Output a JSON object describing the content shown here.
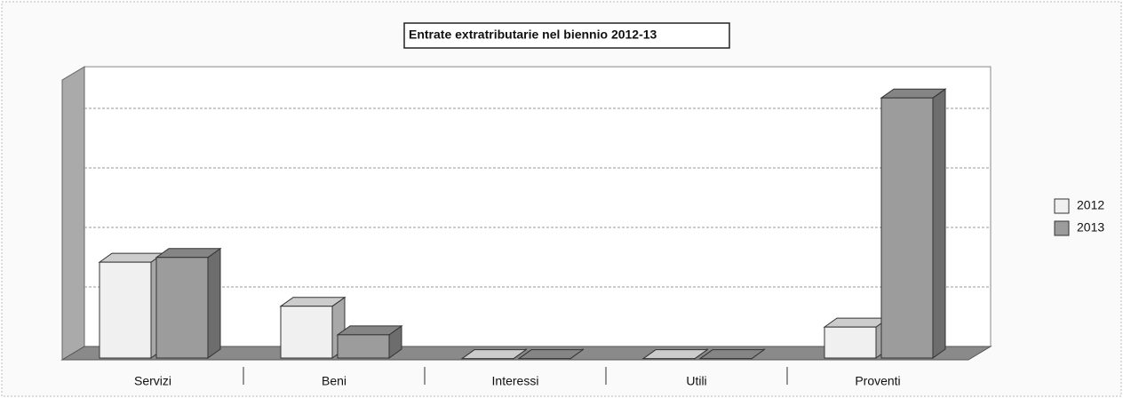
{
  "chart_data": {
    "type": "bar3d",
    "title": "Entrate extratributarie nel biennio 2012-13",
    "categories": [
      "Servizi",
      "Beni",
      "Interessi",
      "Utili",
      "Proventi"
    ],
    "series": [
      {
        "name": "2012",
        "color": "#f0f0f0",
        "values": [
          1.64,
          0.9,
          0.02,
          0.02,
          0.55
        ]
      },
      {
        "name": "2013",
        "color": "#9c9c9c",
        "values": [
          1.72,
          0.42,
          0.02,
          0.02,
          4.4
        ]
      }
    ],
    "ylim": [
      0,
      4.7
    ],
    "yticks": [
      0,
      1,
      2,
      3,
      4
    ],
    "grid": true,
    "legend": "right"
  }
}
